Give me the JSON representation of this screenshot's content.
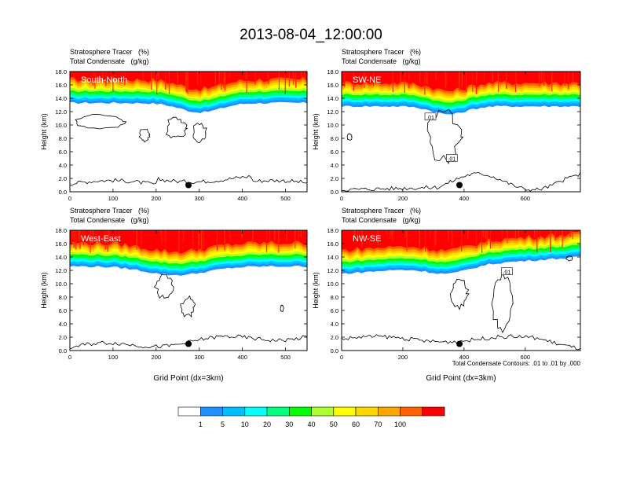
{
  "figure": {
    "title": "2013-08-04_12:00:00",
    "footnote": "Total Condensate Contours: .01 to .01 by .000",
    "colorbar": {
      "labels": [
        "1",
        "5",
        "10",
        "20",
        "30",
        "40",
        "50",
        "60",
        "70",
        "100"
      ],
      "colors": [
        "#ffffff",
        "#1e90ff",
        "#00bfff",
        "#00ffff",
        "#00ff7f",
        "#00ff00",
        "#adff2f",
        "#ffff00",
        "#ffd700",
        "#ffa500",
        "#ff6000",
        "#ff0000"
      ]
    }
  },
  "chart_data": [
    {
      "type": "contour",
      "panel_label": "South-North",
      "title_line1": "Stratosphere Tracer   (%)",
      "title_line2": "Total Condensate   (g/kg)",
      "ylabel": "Height (km)",
      "xlabel": "",
      "xlim": [
        0,
        550
      ],
      "ylim": [
        0,
        18
      ],
      "xticks": [
        "0",
        "100",
        "200",
        "300",
        "400",
        "500"
      ],
      "yticks": [
        "0.0",
        "2.0",
        "4.0",
        "6.0",
        "8.0",
        "10.0",
        "12.0",
        "14.0",
        "16.0",
        "18.0"
      ],
      "tracer_band_base_km": 13.3,
      "marker": {
        "x": 275,
        "y": 1.0
      },
      "contour_labels": []
    },
    {
      "type": "contour",
      "panel_label": "SW-NE",
      "title_line1": "Stratosphere Tracer   (%)",
      "title_line2": "Total Condensate   (g/kg)",
      "ylabel": "Height (km)",
      "xlabel": "",
      "xlim": [
        0,
        780
      ],
      "ylim": [
        0,
        18
      ],
      "xticks": [
        "0",
        "200",
        "400",
        "600"
      ],
      "yticks": [
        "0.0",
        "2.0",
        "4.0",
        "6.0",
        "8.0",
        "10.0",
        "12.0",
        "14.0",
        "16.0",
        "18.0"
      ],
      "tracer_band_base_km": 12.8,
      "marker": {
        "x": 385,
        "y": 1.0
      },
      "contour_labels": [
        {
          "text": ".01",
          "x": 290,
          "y": 11.2
        },
        {
          "text": ".01",
          "x": 360,
          "y": 5.0
        }
      ]
    },
    {
      "type": "contour",
      "panel_label": "West-East",
      "title_line1": "Stratosphere Tracer   (%)",
      "title_line2": "Total Condensate   (g/kg)",
      "ylabel": "Height (km)",
      "xlabel": "Grid Point (dx=3km)",
      "xlim": [
        0,
        550
      ],
      "ylim": [
        0,
        18
      ],
      "xticks": [
        "0",
        "100",
        "200",
        "300",
        "400",
        "500"
      ],
      "yticks": [
        "0.0",
        "2.0",
        "4.0",
        "6.0",
        "8.0",
        "10.0",
        "12.0",
        "14.0",
        "16.0",
        "18.0"
      ],
      "tracer_band_base_km": 12.6,
      "marker": {
        "x": 275,
        "y": 1.0
      },
      "contour_labels": []
    },
    {
      "type": "contour",
      "panel_label": "NW-SE",
      "title_line1": "Stratosphere Tracer   (%)",
      "title_line2": "Total Condensate   (g/kg)",
      "ylabel": "Height (km)",
      "xlabel": "Grid Point (dx=3km)",
      "xlim": [
        0,
        780
      ],
      "ylim": [
        0,
        18
      ],
      "xticks": [
        "0",
        "200",
        "400",
        "600"
      ],
      "yticks": [
        "0.0",
        "2.0",
        "4.0",
        "6.0",
        "8.0",
        "10.0",
        "12.0",
        "14.0",
        "16.0",
        "18.0"
      ],
      "tracer_band_base_km": 11.5,
      "marker": {
        "x": 385,
        "y": 1.0
      },
      "contour_labels": [
        {
          "text": ".01",
          "x": 540,
          "y": 11.8
        }
      ]
    }
  ]
}
